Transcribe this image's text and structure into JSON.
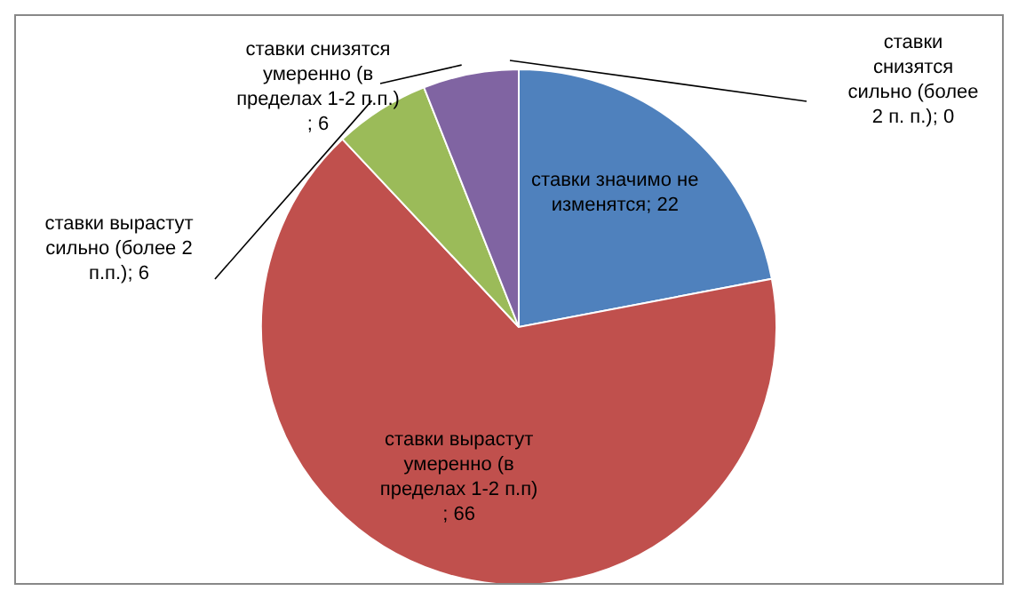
{
  "chart_data": {
    "type": "pie",
    "categories": [
      "ставки значимо не изменятся",
      "ставки вырастут умеренно (в пределах 1-2 п.п)",
      "ставки вырастут сильно (более 2 п.п.)",
      "ставки снизятся умеренно (в пределах 1-2 п.п.)",
      "ставки снизятся сильно (более 2 п. п.)"
    ],
    "values": [
      22,
      66,
      6,
      6,
      0
    ],
    "colors": [
      "#4f81bd",
      "#c0504d",
      "#9bbb59",
      "#8064a2",
      "#4bacc6"
    ],
    "value_labels": [
      "; 22",
      "; 66",
      "; 6",
      "; 6",
      "; 0"
    ],
    "legend": false
  }
}
